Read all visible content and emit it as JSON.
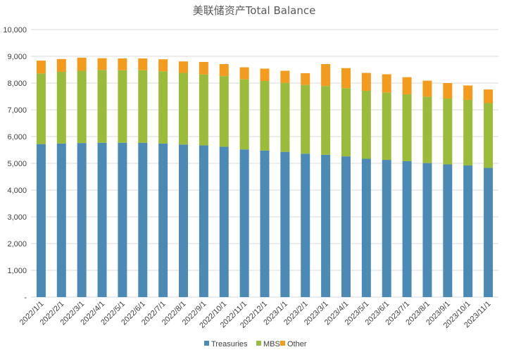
{
  "chart_data": {
    "type": "bar",
    "stacked": true,
    "title": "美联储资产Total Balance",
    "xlabel": "",
    "ylabel": "",
    "ylim": [
      0,
      10000
    ],
    "yticks": [
      "-",
      "1,000",
      "2,000",
      "3,000",
      "4,000",
      "5,000",
      "6,000",
      "7,000",
      "8,000",
      "9,000",
      "10,000"
    ],
    "grid": true,
    "legend": "bottom",
    "categories": [
      "2022/1/1",
      "2022/2/1",
      "2022/3/1",
      "2022/4/1",
      "2022/5/1",
      "2022/6/1",
      "2022/7/1",
      "2022/8/1",
      "2022/9/1",
      "2022/10/1",
      "2022/11/1",
      "2022/12/1",
      "2023/1/1",
      "2023/2/1",
      "2023/3/1",
      "2023/4/1",
      "2023/5/1",
      "2023/6/1",
      "2023/7/1",
      "2023/8/1",
      "2023/9/1",
      "2023/10/1",
      "2023/11/1"
    ],
    "series": [
      {
        "name": "Treasuries",
        "color": "#4a8ab5",
        "values": [
          5720,
          5740,
          5760,
          5770,
          5770,
          5770,
          5740,
          5700,
          5670,
          5620,
          5520,
          5480,
          5430,
          5360,
          5320,
          5260,
          5170,
          5130,
          5080,
          5010,
          4960,
          4920,
          4830
        ]
      },
      {
        "name": "MBS",
        "color": "#9bbb3a",
        "values": [
          2640,
          2680,
          2700,
          2720,
          2710,
          2710,
          2700,
          2680,
          2650,
          2640,
          2620,
          2600,
          2580,
          2570,
          2570,
          2550,
          2540,
          2520,
          2500,
          2480,
          2460,
          2450,
          2420
        ]
      },
      {
        "name": "Other",
        "color": "#f29b1d",
        "values": [
          480,
          480,
          490,
          440,
          440,
          440,
          450,
          430,
          470,
          450,
          450,
          460,
          450,
          440,
          820,
          750,
          670,
          680,
          640,
          600,
          580,
          540,
          510
        ]
      }
    ]
  }
}
